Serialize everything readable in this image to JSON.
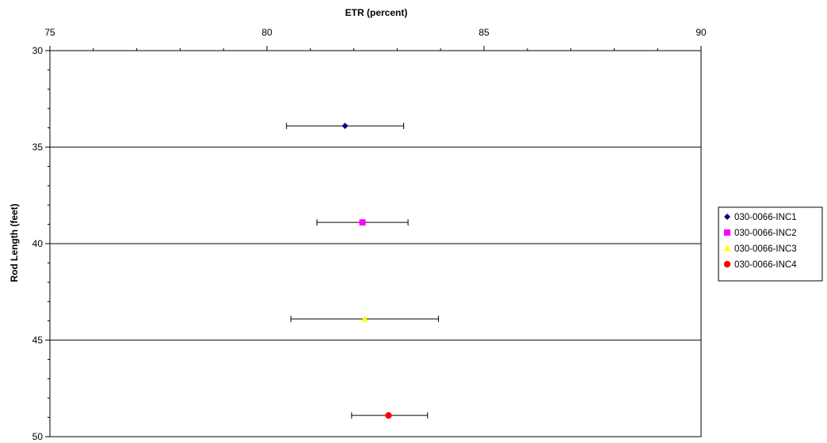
{
  "chart_data": {
    "type": "scatter",
    "title": "",
    "xlabel": "ETR (percent)",
    "ylabel": "Rod Length (feet)",
    "xlim": [
      75,
      90
    ],
    "ylim": [
      30,
      50
    ],
    "y_inverted": true,
    "x_axis_position": "top",
    "x_ticks": [
      "75",
      "80",
      "85",
      "90"
    ],
    "y_ticks": [
      "30",
      "35",
      "40",
      "45",
      "50"
    ],
    "horizontal_gridlines": [
      35,
      40,
      45
    ],
    "legend_position": "right",
    "series": [
      {
        "name": "030-0066-INC1",
        "marker": "diamond",
        "color": "#000080",
        "x": 81.8,
        "y": 33.9,
        "err_low": 80.45,
        "err_high": 83.15
      },
      {
        "name": "030-0066-INC2",
        "marker": "square",
        "color": "#FF00FF",
        "x": 82.2,
        "y": 38.9,
        "err_low": 81.15,
        "err_high": 83.25
      },
      {
        "name": "030-0066-INC3",
        "marker": "triangle",
        "color": "#FFFF00",
        "x": 82.25,
        "y": 43.9,
        "err_low": 80.55,
        "err_high": 83.95
      },
      {
        "name": "030-0066-INC4",
        "marker": "circle",
        "color": "#FF0000",
        "x": 82.8,
        "y": 48.9,
        "err_low": 81.95,
        "err_high": 83.7
      }
    ]
  }
}
